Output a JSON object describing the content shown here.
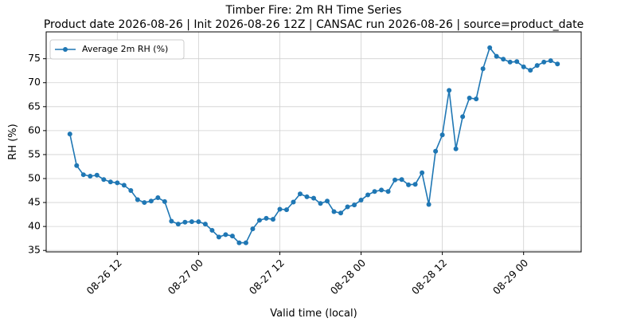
{
  "chart_data": {
    "type": "line",
    "title": "Timber Fire: 2m RH Time Series",
    "subtitle": "Product date 2026-08-26 | Init 2026-08-26 12Z | CANSAC run 2026-08-26 | source=product_date",
    "x_label": "Valid time (local)",
    "y_label": "RH (%)",
    "x": [
      "2026-08-26 05:00",
      "2026-08-26 06:00",
      "2026-08-26 07:00",
      "2026-08-26 08:00",
      "2026-08-26 09:00",
      "2026-08-26 10:00",
      "2026-08-26 11:00",
      "2026-08-26 12:00",
      "2026-08-26 13:00",
      "2026-08-26 14:00",
      "2026-08-26 15:00",
      "2026-08-26 16:00",
      "2026-08-26 17:00",
      "2026-08-26 18:00",
      "2026-08-26 19:00",
      "2026-08-26 20:00",
      "2026-08-26 21:00",
      "2026-08-26 22:00",
      "2026-08-26 23:00",
      "2026-08-27 00:00",
      "2026-08-27 01:00",
      "2026-08-27 02:00",
      "2026-08-27 03:00",
      "2026-08-27 04:00",
      "2026-08-27 05:00",
      "2026-08-27 06:00",
      "2026-08-27 07:00",
      "2026-08-27 08:00",
      "2026-08-27 09:00",
      "2026-08-27 10:00",
      "2026-08-27 11:00",
      "2026-08-27 12:00",
      "2026-08-27 13:00",
      "2026-08-27 14:00",
      "2026-08-27 15:00",
      "2026-08-27 16:00",
      "2026-08-27 17:00",
      "2026-08-27 18:00",
      "2026-08-27 19:00",
      "2026-08-27 20:00",
      "2026-08-27 21:00",
      "2026-08-27 22:00",
      "2026-08-27 23:00",
      "2026-08-28 00:00",
      "2026-08-28 01:00",
      "2026-08-28 02:00",
      "2026-08-28 03:00",
      "2026-08-28 04:00",
      "2026-08-28 05:00",
      "2026-08-28 06:00",
      "2026-08-28 07:00",
      "2026-08-28 08:00",
      "2026-08-28 09:00",
      "2026-08-28 10:00",
      "2026-08-28 11:00",
      "2026-08-28 12:00",
      "2026-08-28 13:00",
      "2026-08-28 14:00",
      "2026-08-28 15:00",
      "2026-08-28 16:00",
      "2026-08-28 17:00",
      "2026-08-28 18:00",
      "2026-08-28 19:00",
      "2026-08-28 20:00",
      "2026-08-28 21:00",
      "2026-08-28 22:00",
      "2026-08-28 23:00",
      "2026-08-29 00:00",
      "2026-08-29 01:00",
      "2026-08-29 02:00",
      "2026-08-29 03:00",
      "2026-08-29 04:00",
      "2026-08-29 05:00"
    ],
    "series": [
      {
        "name": "Average 2m RH (%)",
        "color": "#1f77b4",
        "values": [
          59.3,
          52.7,
          50.8,
          50.5,
          50.7,
          49.8,
          49.3,
          49.1,
          48.6,
          47.5,
          45.6,
          45.0,
          45.3,
          46.0,
          45.2,
          41.1,
          40.5,
          40.9,
          41.0,
          41.0,
          40.5,
          39.2,
          37.8,
          38.3,
          38.0,
          36.6,
          36.6,
          39.5,
          41.3,
          41.7,
          41.5,
          43.6,
          43.5,
          45.1,
          46.8,
          46.2,
          45.9,
          44.8,
          45.3,
          43.1,
          42.8,
          44.1,
          44.5,
          45.5,
          46.6,
          47.3,
          47.6,
          47.3,
          49.7,
          49.8,
          48.7,
          48.8,
          51.2,
          44.6,
          55.7,
          59.1,
          68.4,
          56.2,
          62.9,
          66.8,
          66.6,
          72.9,
          77.3,
          75.5,
          74.9,
          74.3,
          74.4,
          73.3,
          72.6,
          73.6,
          74.3,
          74.6,
          73.9
        ]
      }
    ],
    "xlim": [
      "2026-08-26 01:30",
      "2026-08-29 08:30"
    ],
    "xticks": [
      {
        "value": "2026-08-26 12:00",
        "label": "08-26 12"
      },
      {
        "value": "2026-08-27 00:00",
        "label": "08-27 00"
      },
      {
        "value": "2026-08-27 12:00",
        "label": "08-27 12"
      },
      {
        "value": "2026-08-28 00:00",
        "label": "08-28 00"
      },
      {
        "value": "2026-08-28 12:00",
        "label": "08-28 12"
      },
      {
        "value": "2026-08-29 00:00",
        "label": "08-29 00"
      }
    ],
    "ylim": [
      34.7,
      80.6
    ],
    "yticks": [
      35,
      40,
      45,
      50,
      55,
      60,
      65,
      70,
      75
    ],
    "grid": true,
    "legend": "upper left"
  }
}
